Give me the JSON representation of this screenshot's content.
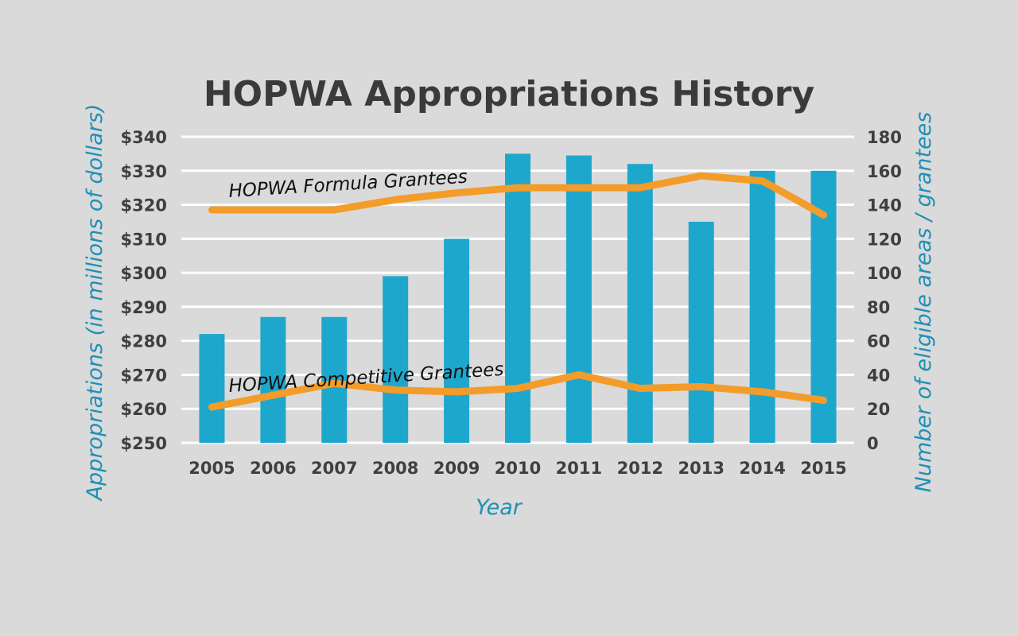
{
  "chart_data": {
    "type": "bar",
    "title": "HOPWA Appropriations History",
    "xlabel": "Year",
    "ylabel": "Appropriations (in millions of dollars)",
    "y2label": "Number of eligible areas / grantees",
    "categories": [
      "2005",
      "2006",
      "2007",
      "2008",
      "2009",
      "2010",
      "2011",
      "2012",
      "2013",
      "2014",
      "2015"
    ],
    "y_ticks": [
      "$250",
      "$260",
      "$270",
      "$280",
      "$290",
      "$300",
      "$310",
      "$320",
      "$330",
      "$340"
    ],
    "y2_ticks": [
      "0",
      "20",
      "40",
      "60",
      "80",
      "100",
      "120",
      "140",
      "160",
      "180"
    ],
    "ylim": [
      250,
      340
    ],
    "y2lim": [
      0,
      180
    ],
    "grid": true,
    "bar_series": {
      "axis": "left",
      "color": "#1ea7cd",
      "values": [
        282,
        287,
        287,
        299,
        310,
        335,
        334.5,
        332,
        315,
        330,
        330
      ]
    },
    "line_series": [
      {
        "name": "HOPWA Formula Grantees",
        "axis": "right",
        "color": "#f39c2a",
        "values": [
          137,
          137,
          137,
          143,
          147,
          150,
          150,
          150,
          157,
          154,
          134
        ]
      },
      {
        "name": "HOPWA Competitive Grantees",
        "axis": "right",
        "color": "#f39c2a",
        "values": [
          21,
          28,
          35,
          31,
          30,
          32,
          40,
          32,
          33,
          30,
          25
        ]
      }
    ],
    "colors": {
      "background": "#d9dad9",
      "bar": "#1ea7cd",
      "line": "#f39c2a",
      "axis_label": "#1f8fb8",
      "grid": "#ffffff"
    }
  }
}
